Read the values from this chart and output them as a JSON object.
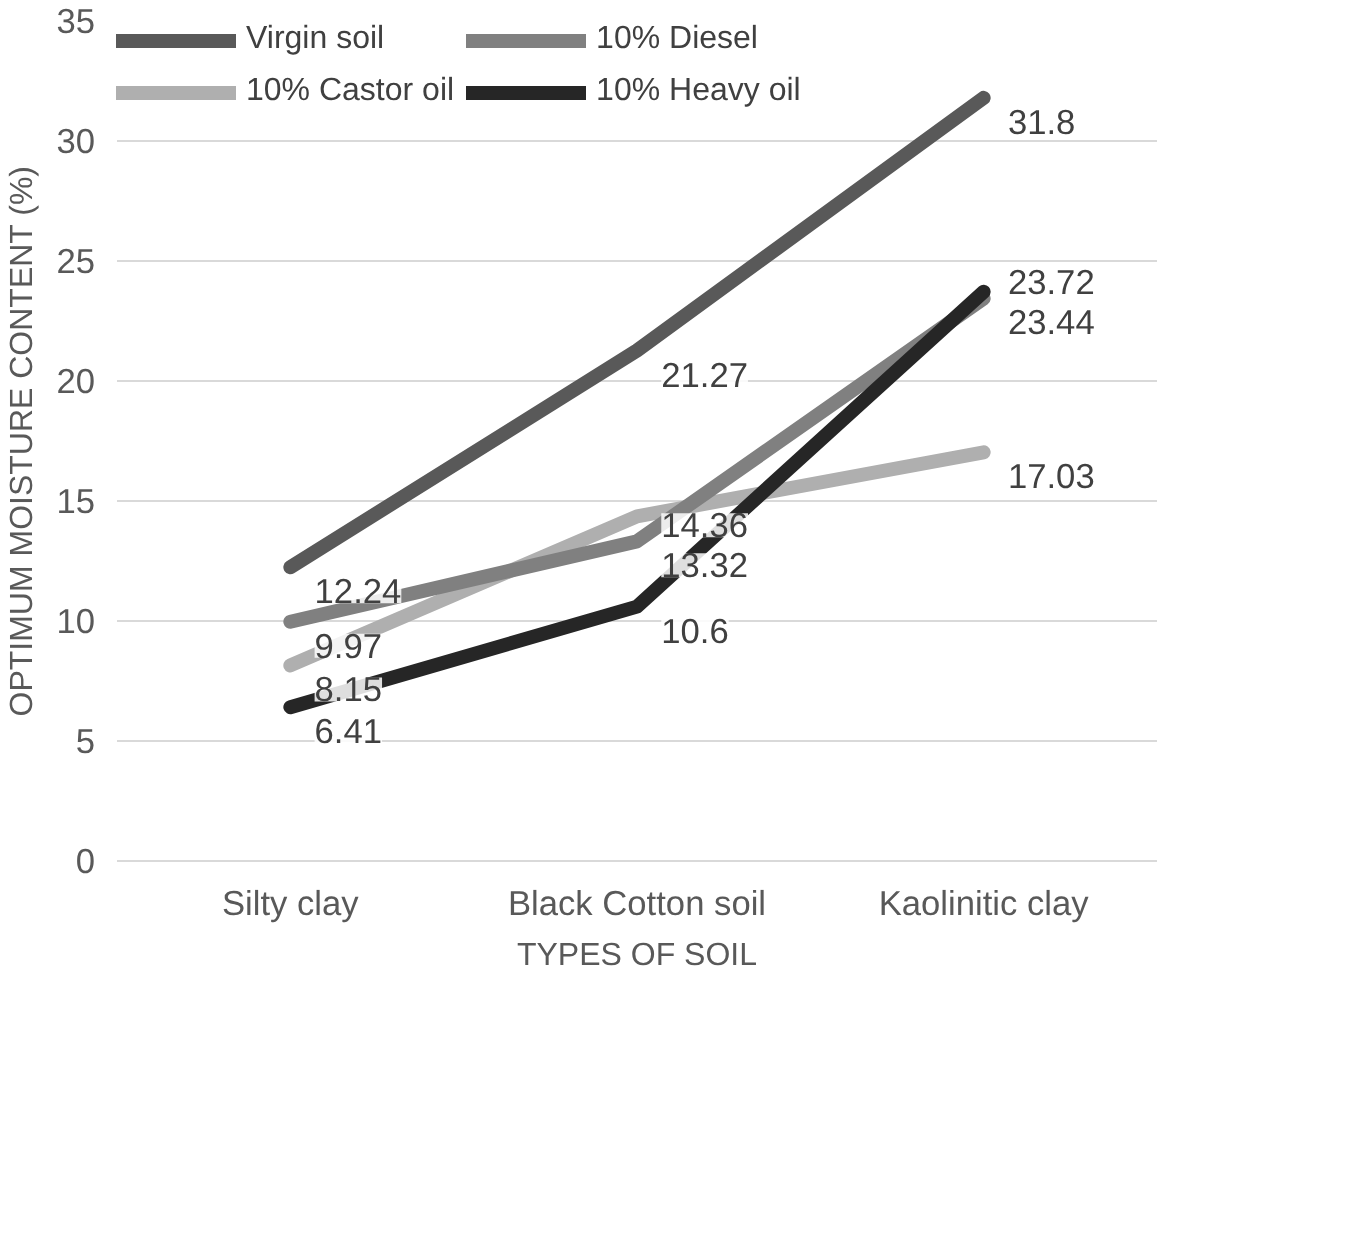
{
  "chart_data": {
    "type": "line",
    "xlabel": "TYPES OF SOIL",
    "ylabel": "OPTIMUM MOISTURE CONTENT (%)",
    "categories": [
      "Silty clay",
      "Black Cotton soil",
      "Kaolinitic clay"
    ],
    "series": [
      {
        "name": "Virgin soil",
        "color": "#595959",
        "values": [
          12.24,
          21.27,
          31.8
        ]
      },
      {
        "name": "10% Castor oil",
        "color": "#afafaf",
        "values": [
          8.15,
          14.36,
          17.03
        ]
      },
      {
        "name": "10% Diesel",
        "color": "#808080",
        "values": [
          9.97,
          13.32,
          23.44
        ]
      },
      {
        "name": "10% Heavy oil",
        "color": "#262626",
        "values": [
          6.41,
          10.6,
          23.72
        ]
      }
    ],
    "ylim": [
      0,
      35
    ],
    "yticks": [
      0,
      5,
      10,
      15,
      20,
      25,
      30,
      35
    ],
    "grid": "y",
    "legend": "top",
    "data_labels": true,
    "marker": "none",
    "line_style": "solid"
  }
}
